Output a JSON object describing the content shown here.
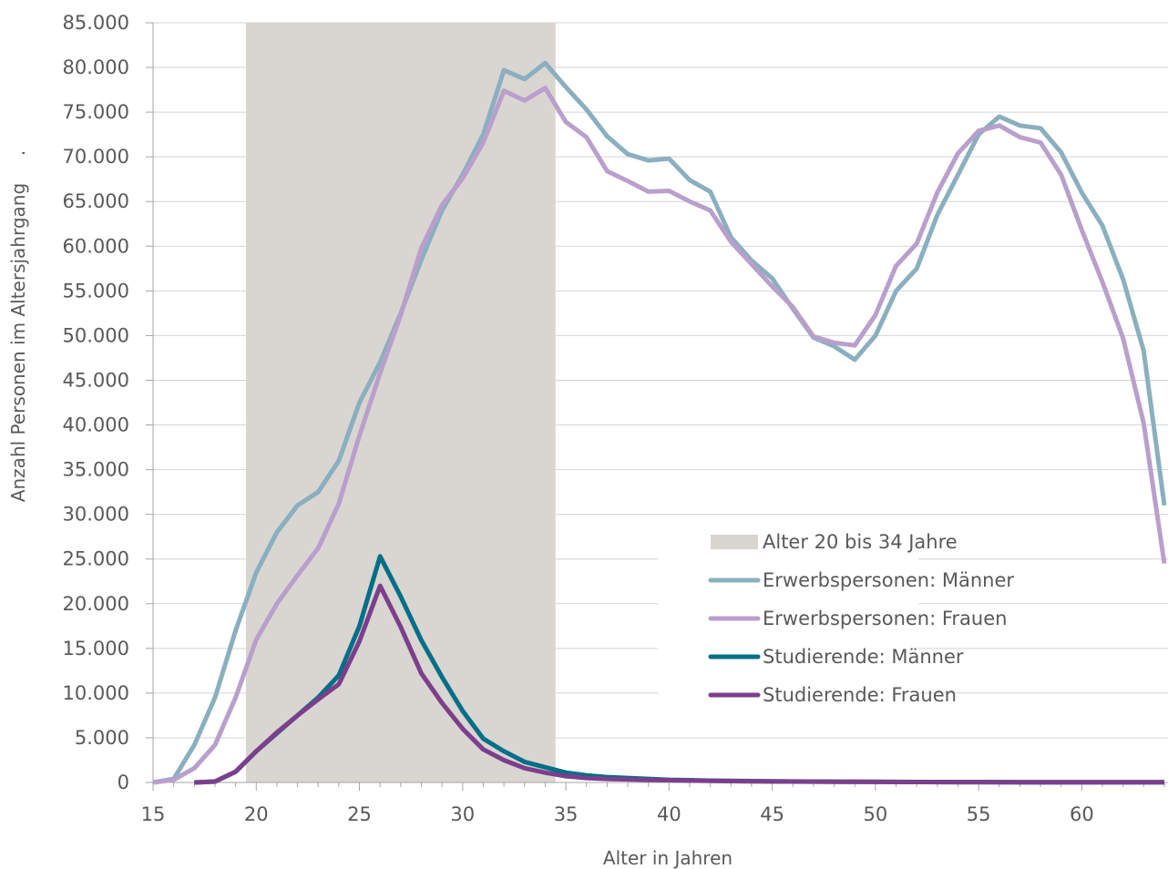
{
  "chart_data": {
    "type": "line",
    "xlabel": "Alter in Jahren",
    "ylabel": "Anzahl Personen im Altersjahrgang",
    "ylabel_suffix": ".",
    "xlim": [
      15,
      64
    ],
    "ylim": [
      0,
      85000
    ],
    "grid": true,
    "legend_position": "lower-right",
    "x_ticks": [
      "15",
      "20",
      "25",
      "30",
      "35",
      "40",
      "45",
      "50",
      "55",
      "60"
    ],
    "y_ticks": [
      "0",
      "5.000",
      "10.000",
      "15.000",
      "20.000",
      "25.000",
      "30.000",
      "35.000",
      "40.000",
      "45.000",
      "50.000",
      "55.000",
      "60.000",
      "65.000",
      "70.000",
      "75.000",
      "80.000",
      "85.000"
    ],
    "highlight_band": {
      "name": "Alter 20 bis 34 Jahre",
      "x_from": 19.5,
      "x_to": 34.5,
      "color": "#d9d5d0"
    },
    "series": [
      {
        "name": "Erwerbspersonen: Männer",
        "color": "#8aafbf",
        "x": [
          15,
          16,
          17,
          18,
          19,
          20,
          21,
          22,
          23,
          24,
          25,
          26,
          27,
          28,
          29,
          30,
          31,
          32,
          33,
          34,
          35,
          36,
          37,
          38,
          39,
          40,
          41,
          42,
          43,
          44,
          45,
          46,
          47,
          48,
          49,
          50,
          51,
          52,
          53,
          54,
          55,
          56,
          57,
          58,
          59,
          60,
          61,
          62,
          63,
          64
        ],
        "values": [
          0,
          400,
          4200,
          9500,
          17000,
          23500,
          28000,
          31000,
          32500,
          36000,
          42500,
          47000,
          52500,
          58500,
          64000,
          68000,
          72500,
          79700,
          78700,
          80500,
          77800,
          75300,
          72300,
          70300,
          69600,
          69800,
          67400,
          66100,
          61000,
          58400,
          56400,
          53000,
          49800,
          48800,
          47300,
          50000,
          55000,
          57500,
          63500,
          68000,
          72500,
          74500,
          73500,
          73200,
          70500,
          66000,
          62300,
          56300,
          48300,
          31000
        ]
      },
      {
        "name": "Erwerbspersonen: Frauen",
        "color": "#b99fcc",
        "x": [
          15,
          16,
          17,
          18,
          19,
          20,
          21,
          22,
          23,
          24,
          25,
          26,
          27,
          28,
          29,
          30,
          31,
          32,
          33,
          34,
          35,
          36,
          37,
          38,
          39,
          40,
          41,
          42,
          43,
          44,
          45,
          46,
          47,
          48,
          49,
          50,
          51,
          52,
          53,
          54,
          55,
          56,
          57,
          58,
          59,
          60,
          61,
          62,
          63,
          64
        ],
        "values": [
          0,
          300,
          1600,
          4200,
          9500,
          16000,
          20000,
          23200,
          26200,
          31200,
          38800,
          45800,
          52300,
          59800,
          64600,
          67600,
          71600,
          77400,
          76300,
          77700,
          73900,
          72200,
          68400,
          67300,
          66100,
          66200,
          65000,
          64000,
          60500,
          58000,
          55500,
          53200,
          49900,
          49200,
          48900,
          52300,
          57800,
          60300,
          66000,
          70400,
          72900,
          73500,
          72200,
          71600,
          68000,
          61800,
          56000,
          49700,
          40200,
          24500
        ]
      },
      {
        "name": "Studierende: Männer",
        "color": "#006f87",
        "x": [
          17,
          18,
          19,
          20,
          21,
          22,
          23,
          24,
          25,
          26,
          27,
          28,
          29,
          30,
          31,
          32,
          33,
          34,
          35,
          36,
          37,
          38,
          39,
          40,
          41,
          42,
          43,
          44,
          45,
          46,
          47,
          48,
          49,
          50,
          51,
          52,
          53,
          54,
          55,
          56,
          57,
          58,
          59,
          60,
          61,
          62,
          63,
          64
        ],
        "values": [
          0,
          100,
          1200,
          3500,
          5500,
          7500,
          9500,
          12000,
          17500,
          25300,
          20800,
          15900,
          11800,
          8000,
          4900,
          3500,
          2300,
          1700,
          1100,
          800,
          600,
          500,
          400,
          300,
          250,
          200,
          180,
          150,
          130,
          110,
          100,
          90,
          80,
          70,
          60,
          50,
          50,
          40,
          40,
          40,
          30,
          30,
          30,
          30,
          30,
          30,
          30,
          30
        ]
      },
      {
        "name": "Studierende: Frauen",
        "color": "#7b3f8c",
        "x": [
          17,
          18,
          19,
          20,
          21,
          22,
          23,
          24,
          25,
          26,
          27,
          28,
          29,
          30,
          31,
          32,
          33,
          34,
          35,
          36,
          37,
          38,
          39,
          40,
          41,
          42,
          43,
          44,
          45,
          46,
          47,
          48,
          49,
          50,
          51,
          52,
          53,
          54,
          55,
          56,
          57,
          58,
          59,
          60,
          61,
          62,
          63,
          64
        ],
        "values": [
          0,
          100,
          1200,
          3500,
          5600,
          7500,
          9300,
          11000,
          15800,
          22000,
          17400,
          12200,
          8900,
          6000,
          3700,
          2500,
          1600,
          1100,
          700,
          500,
          400,
          350,
          300,
          250,
          200,
          180,
          150,
          130,
          110,
          100,
          90,
          80,
          70,
          60,
          50,
          50,
          40,
          40,
          40,
          30,
          30,
          30,
          30,
          30,
          30,
          30,
          30,
          30
        ]
      }
    ]
  }
}
